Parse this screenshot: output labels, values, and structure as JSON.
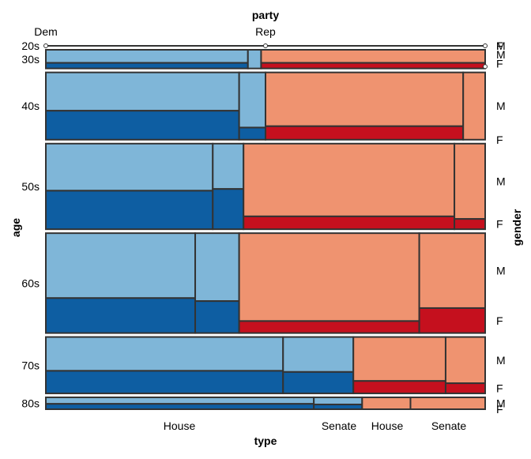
{
  "chart_data": {
    "type": "mosaic",
    "top_axis_title": "party",
    "bottom_axis_title": "type",
    "left_axis_title": "age",
    "right_axis_title": "gender",
    "party_labels": [
      "Dem",
      "Rep"
    ],
    "type_labels": [
      "House",
      "Senate",
      "House",
      "Senate"
    ],
    "age_labels": [
      "20s",
      "30s",
      "40s",
      "50s",
      "60s",
      "70s",
      "80s"
    ],
    "gender_labels": [
      "M",
      "F"
    ],
    "colors": {
      "Dem_M": "#7fb6d8",
      "Dem_F": "#0e5ea2",
      "Rep_M": "#ef9370",
      "Rep_F": "#c5101e"
    },
    "age_share": {
      "20s": 0.0,
      "30s": 0.055,
      "40s": 0.198,
      "50s": 0.252,
      "60s": 0.294,
      "70s": 0.166,
      "80s": 0.035
    },
    "cells": [
      {
        "age": "20s",
        "party": "Dem",
        "type": "House",
        "share_of_row": 0.0,
        "female_share": 0.5
      },
      {
        "age": "20s",
        "party": "Dem",
        "type": "Senate",
        "share_of_row": 0.0,
        "female_share": 0.5
      },
      {
        "age": "20s",
        "party": "Rep",
        "type": "House",
        "share_of_row": 0.0,
        "female_share": 0.5
      },
      {
        "age": "20s",
        "party": "Rep",
        "type": "Senate",
        "share_of_row": 0.0,
        "female_share": 0.5
      },
      {
        "age": "30s",
        "party": "Dem",
        "type": "House",
        "share_of_row": 0.46,
        "female_share": 0.3
      },
      {
        "age": "30s",
        "party": "Dem",
        "type": "Senate",
        "share_of_row": 0.03,
        "female_share": 0.0
      },
      {
        "age": "30s",
        "party": "Rep",
        "type": "House",
        "share_of_row": 0.51,
        "female_share": 0.3
      },
      {
        "age": "30s",
        "party": "Rep",
        "type": "Senate",
        "share_of_row": 0.0,
        "female_share": 0.5
      },
      {
        "age": "40s",
        "party": "Dem",
        "type": "House",
        "share_of_row": 0.44,
        "female_share": 0.43
      },
      {
        "age": "40s",
        "party": "Dem",
        "type": "Senate",
        "share_of_row": 0.06,
        "female_share": 0.18
      },
      {
        "age": "40s",
        "party": "Rep",
        "type": "House",
        "share_of_row": 0.45,
        "female_share": 0.2
      },
      {
        "age": "40s",
        "party": "Rep",
        "type": "Senate",
        "share_of_row": 0.05,
        "female_share": 0.0
      },
      {
        "age": "50s",
        "party": "Dem",
        "type": "House",
        "share_of_row": 0.38,
        "female_share": 0.45
      },
      {
        "age": "50s",
        "party": "Dem",
        "type": "Senate",
        "share_of_row": 0.07,
        "female_share": 0.47
      },
      {
        "age": "50s",
        "party": "Rep",
        "type": "House",
        "share_of_row": 0.48,
        "female_share": 0.15
      },
      {
        "age": "50s",
        "party": "Rep",
        "type": "Senate",
        "share_of_row": 0.07,
        "female_share": 0.12
      },
      {
        "age": "60s",
        "party": "Dem",
        "type": "House",
        "share_of_row": 0.34,
        "female_share": 0.35
      },
      {
        "age": "60s",
        "party": "Dem",
        "type": "Senate",
        "share_of_row": 0.1,
        "female_share": 0.32
      },
      {
        "age": "60s",
        "party": "Rep",
        "type": "House",
        "share_of_row": 0.41,
        "female_share": 0.12
      },
      {
        "age": "60s",
        "party": "Rep",
        "type": "Senate",
        "share_of_row": 0.15,
        "female_share": 0.25
      },
      {
        "age": "70s",
        "party": "Dem",
        "type": "House",
        "share_of_row": 0.54,
        "female_share": 0.4
      },
      {
        "age": "70s",
        "party": "Dem",
        "type": "Senate",
        "share_of_row": 0.16,
        "female_share": 0.38
      },
      {
        "age": "70s",
        "party": "Rep",
        "type": "House",
        "share_of_row": 0.21,
        "female_share": 0.22
      },
      {
        "age": "70s",
        "party": "Rep",
        "type": "Senate",
        "share_of_row": 0.09,
        "female_share": 0.18
      },
      {
        "age": "80s",
        "party": "Dem",
        "type": "House",
        "share_of_row": 0.61,
        "female_share": 0.45
      },
      {
        "age": "80s",
        "party": "Dem",
        "type": "Senate",
        "share_of_row": 0.11,
        "female_share": 0.4
      },
      {
        "age": "80s",
        "party": "Rep",
        "type": "House",
        "share_of_row": 0.11,
        "female_share": 0.0
      },
      {
        "age": "80s",
        "party": "Rep",
        "type": "Senate",
        "share_of_row": 0.17,
        "female_share": 0.0
      }
    ]
  }
}
